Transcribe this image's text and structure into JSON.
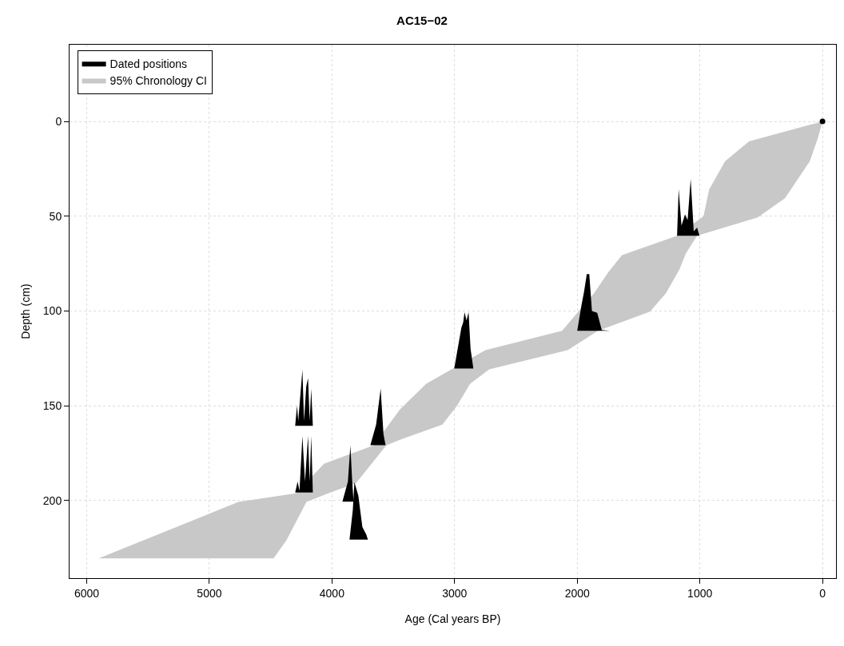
{
  "chart_data": {
    "type": "area",
    "title": "AC15−02",
    "xlabel": "Age (Cal years BP)",
    "ylabel": "Depth (cm)",
    "xlim": [
      6140,
      -110
    ],
    "ylim": [
      241,
      -40.5
    ],
    "xticks": [
      6000,
      5000,
      4000,
      3000,
      2000,
      1000,
      0
    ],
    "yticks": [
      0,
      50,
      100,
      150,
      200
    ],
    "grid": true,
    "legend": "top left",
    "series": [
      {
        "name": "95% Chronology CI",
        "color": "#c8c8c8",
        "x": [
          0,
          599,
          795,
          925,
          970,
          1186,
          1635,
          1752,
          1863,
          2124,
          2749,
          3231,
          3446,
          3661,
          4065,
          4293,
          4762,
          5902,
          4476,
          4371,
          4208,
          4013,
          3805,
          3557,
          3446,
          3100,
          2980,
          2873,
          2717,
          2078,
          1831,
          1407,
          1277,
          1166,
          1114,
          1023,
          528,
          306,
          104,
          39,
          0
        ],
        "values": [
          0,
          10.5,
          21,
          36,
          50,
          60.3,
          70.5,
          80,
          90.7,
          110.5,
          120.7,
          138.4,
          152,
          170.9,
          180.6,
          196.2,
          200.8,
          230.6,
          230.6,
          221,
          200.8,
          195.8,
          191,
          170.9,
          168,
          160,
          150,
          138.4,
          130.8,
          120.7,
          110.5,
          100.4,
          90.7,
          78,
          69.6,
          60.3,
          50.6,
          40.5,
          21,
          9,
          0
        ]
      },
      {
        "name": "Dated positions",
        "color": "#000000",
        "x": [
          1186,
          1173,
          1150,
          1121,
          1100,
          1075,
          1050,
          1023,
          1003
        ],
        "values": [
          60.3,
          35.7,
          55,
          49,
          52,
          30.4,
          58,
          56,
          60.3
        ]
      },
      {
        "color": "#000000",
        "x": [
          2000,
          1967,
          1945,
          1922,
          1902,
          1880,
          1837,
          1800,
          1733
        ],
        "values": [
          110.5,
          97.5,
          90,
          80.6,
          80.6,
          100,
          101,
          110,
          110.5
        ]
      },
      {
        "color": "#000000",
        "x": [
          3003,
          2945,
          2930,
          2919,
          2903,
          2886,
          2870,
          2847
        ],
        "values": [
          130.4,
          108.9,
          106,
          100.7,
          105,
          100.7,
          120,
          130.4
        ]
      },
      {
        "color": "#000000",
        "x": [
          4300,
          4285,
          4275,
          4241,
          4228,
          4210,
          4195,
          4182,
          4169,
          4156
        ],
        "values": [
          160.6,
          150,
          158,
          131,
          158,
          140,
          135.4,
          158,
          141,
          160.6
        ]
      },
      {
        "color": "#000000",
        "x": [
          3687,
          3640,
          3603,
          3580,
          3563
        ],
        "values": [
          170.8,
          160,
          141,
          165,
          170.8
        ]
      },
      {
        "color": "#000000",
        "x": [
          4300,
          4280,
          4265,
          4241,
          4220,
          4195,
          4182,
          4169,
          4156
        ],
        "values": [
          195.8,
          190,
          195,
          166,
          190,
          166,
          190,
          166,
          195.8
        ]
      },
      {
        "color": "#000000",
        "x": [
          3915,
          3870,
          3850,
          3835,
          3824
        ],
        "values": [
          200.7,
          190,
          170.9,
          190,
          200.7
        ]
      },
      {
        "color": "#000000",
        "x": [
          3857,
          3830,
          3817,
          3785,
          3752,
          3720,
          3707
        ],
        "values": [
          220.7,
          205,
          190.3,
          197.5,
          214,
          218,
          220.7
        ]
      },
      {
        "type": "scatter",
        "marker": "circle",
        "color": "#000000",
        "x": [
          0
        ],
        "values": [
          0
        ]
      }
    ]
  }
}
